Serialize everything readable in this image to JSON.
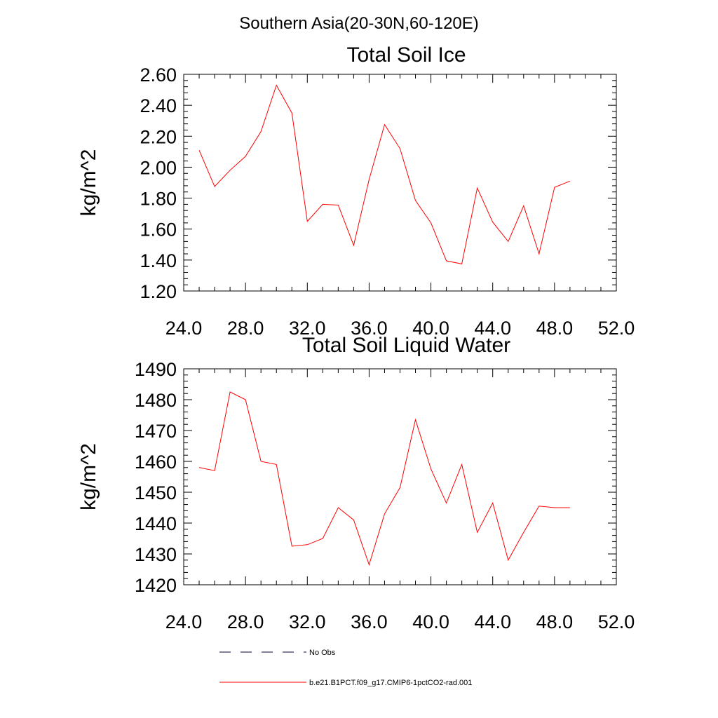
{
  "figure": {
    "title": "Southern Asia(20-30N,60-120E)"
  },
  "legend": [
    {
      "label": "No Obs",
      "color": "#00003a",
      "style": "dashed"
    },
    {
      "label": "b.e21.B1PCT.f09_g17.CMIP6-1pctCO2-rad.001",
      "color": "#ff0000",
      "style": "solid"
    }
  ],
  "chart_data": [
    {
      "type": "line",
      "title": "Total Soil Ice",
      "xlabel": "",
      "ylabel": "kg/m^2",
      "xlim": [
        24,
        52
      ],
      "ylim": [
        1.2,
        2.6
      ],
      "xticks": [
        24,
        28,
        32,
        36,
        40,
        44,
        48,
        52
      ],
      "xtick_labels": [
        "24.0",
        "28.0",
        "32.0",
        "36.0",
        "40.0",
        "44.0",
        "48.0",
        "52.0"
      ],
      "yticks": [
        1.2,
        1.4,
        1.6,
        1.8,
        2.0,
        2.2,
        2.4,
        2.6
      ],
      "ytick_labels": [
        "1.20",
        "1.40",
        "1.60",
        "1.80",
        "2.00",
        "2.20",
        "2.40",
        "2.60"
      ],
      "grid": false,
      "series": [
        {
          "name": "b.e21.B1PCT.f09_g17.CMIP6-1pctCO2-rad.001",
          "color": "#ff0000",
          "x": [
            25,
            26,
            27,
            28,
            29,
            30,
            31,
            32,
            33,
            34,
            35,
            36,
            37,
            38,
            39,
            40,
            41,
            42,
            43,
            44,
            45,
            46,
            47,
            48,
            49
          ],
          "y": [
            2.11,
            1.875,
            1.98,
            2.07,
            2.23,
            2.53,
            2.35,
            1.65,
            1.76,
            1.755,
            1.495,
            1.92,
            2.275,
            2.12,
            1.785,
            1.64,
            1.395,
            1.375,
            1.865,
            1.645,
            1.52,
            1.75,
            1.44,
            1.87,
            1.91
          ]
        }
      ]
    },
    {
      "type": "line",
      "title": "Total Soil Liquid Water",
      "xlabel": "",
      "ylabel": "kg/m^2",
      "xlim": [
        24,
        52
      ],
      "ylim": [
        1420,
        1490
      ],
      "xticks": [
        24,
        28,
        32,
        36,
        40,
        44,
        48,
        52
      ],
      "xtick_labels": [
        "24.0",
        "28.0",
        "32.0",
        "36.0",
        "40.0",
        "44.0",
        "48.0",
        "52.0"
      ],
      "yticks": [
        1420,
        1430,
        1440,
        1450,
        1460,
        1470,
        1480,
        1490
      ],
      "ytick_labels": [
        "1420",
        "1430",
        "1440",
        "1450",
        "1460",
        "1470",
        "1480",
        "1490"
      ],
      "grid": false,
      "series": [
        {
          "name": "b.e21.B1PCT.f09_g17.CMIP6-1pctCO2-rad.001",
          "color": "#ff0000",
          "x": [
            25,
            26,
            27,
            28,
            29,
            30,
            31,
            32,
            33,
            34,
            35,
            36,
            37,
            38,
            39,
            40,
            41,
            42,
            43,
            44,
            45,
            46,
            47,
            48,
            49
          ],
          "y": [
            1458,
            1457,
            1482.5,
            1480,
            1460,
            1459,
            1432.5,
            1433,
            1435,
            1445,
            1441,
            1426.5,
            1443,
            1451.5,
            1473.5,
            1457.5,
            1446.5,
            1459,
            1437,
            1446.5,
            1428,
            1437,
            1445.5,
            1445,
            1445
          ]
        }
      ]
    }
  ]
}
